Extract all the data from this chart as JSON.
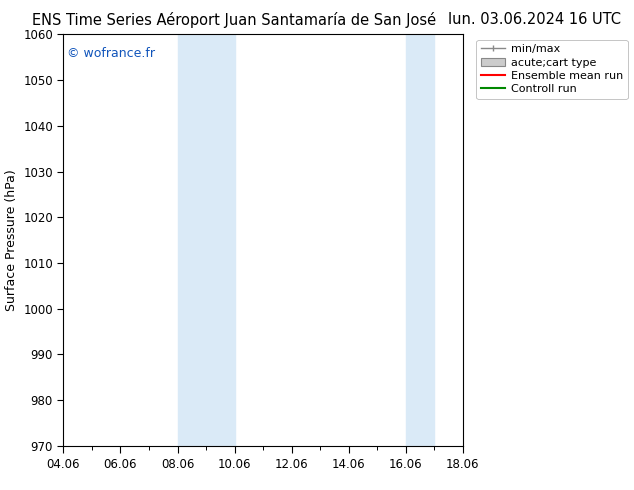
{
  "title": "ENS Time Series Aéroport Juan Santamaría de San José",
  "date_str": "lun. 03.06.2024 16 UTC",
  "ylabel": "Surface Pressure (hPa)",
  "ylim": [
    970,
    1060
  ],
  "yticks": [
    970,
    980,
    990,
    1000,
    1010,
    1020,
    1030,
    1040,
    1050,
    1060
  ],
  "xtick_labels": [
    "04.06",
    "06.06",
    "08.06",
    "10.06",
    "12.06",
    "14.06",
    "16.06",
    "18.06"
  ],
  "xtick_positions_days": [
    0,
    2,
    4,
    6,
    8,
    10,
    12,
    14
  ],
  "xlim": [
    0,
    14
  ],
  "shaded_bands": [
    {
      "xstart_days": 4.0,
      "xend_days": 6.0,
      "color": "#daeaf7",
      "alpha": 1.0
    },
    {
      "xstart_days": 12.0,
      "xend_days": 13.0,
      "color": "#daeaf7",
      "alpha": 1.0
    }
  ],
  "legend_items": [
    {
      "label": "min/max",
      "type": "minmax",
      "color": "#888888"
    },
    {
      "label": "acute;cart type",
      "type": "rect",
      "facecolor": "#cccccc",
      "edgecolor": "#888888"
    },
    {
      "label": "Ensemble mean run",
      "type": "line",
      "color": "#ff0000"
    },
    {
      "label": "Controll run",
      "type": "line",
      "color": "#008800"
    }
  ],
  "copyright_text": "© wofrance.fr",
  "copyright_color": "#1155bb",
  "background_color": "#ffffff",
  "title_fontsize": 10.5,
  "tick_fontsize": 8.5,
  "ylabel_fontsize": 9,
  "legend_fontsize": 8,
  "copyright_fontsize": 9
}
